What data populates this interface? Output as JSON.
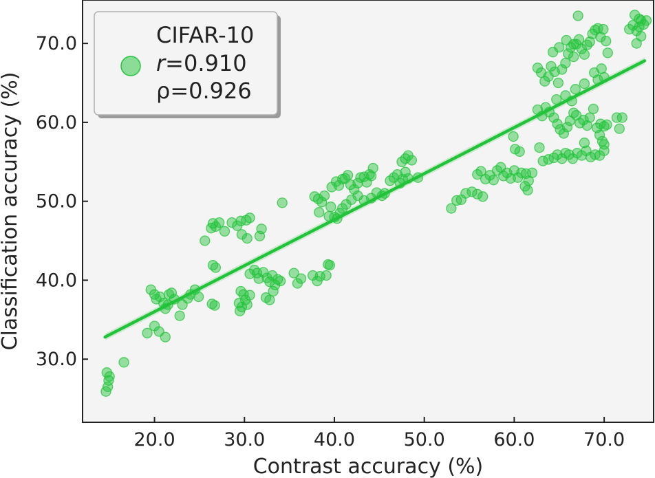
{
  "colors": {
    "series": "#22c33a",
    "plot_background": "#f4f4f4",
    "axis": "#222222",
    "legend_background": "#f4f4f4",
    "legend_border": "#b0b0b0"
  },
  "chart_data": {
    "type": "scatter",
    "xlabel": "Contrast accuracy (%)",
    "ylabel": "Classification accuracy (%)",
    "xlim": [
      12.0,
      75.5
    ],
    "ylim": [
      22.0,
      75.5
    ],
    "xticks": [
      20.0,
      30.0,
      40.0,
      50.0,
      60.0,
      70.0
    ],
    "yticks": [
      30.0,
      40.0,
      50.0,
      60.0,
      70.0
    ],
    "xtick_labels": [
      "20.0",
      "30.0",
      "40.0",
      "50.0",
      "60.0",
      "70.0"
    ],
    "ytick_labels": [
      "30.0",
      "40.0",
      "50.0",
      "60.0",
      "70.0"
    ],
    "grid": false,
    "legend": {
      "placement": "top-left",
      "title": "CIFAR-10",
      "r_symbol": "r",
      "r_value": "=0.910",
      "rho_text": "ρ=0.926"
    },
    "regression": {
      "x": [
        14.5,
        74.5
      ],
      "y": [
        32.8,
        67.8
      ]
    },
    "series": [
      {
        "points": [
          [
            14.6,
            25.9
          ],
          [
            14.8,
            26.5
          ],
          [
            14.9,
            27.3
          ],
          [
            14.7,
            28.3
          ],
          [
            15.0,
            27.8
          ],
          [
            16.6,
            29.6
          ],
          [
            19.2,
            33.3
          ],
          [
            20.0,
            34.2
          ],
          [
            20.5,
            33.5
          ],
          [
            21.2,
            32.8
          ],
          [
            19.6,
            38.8
          ],
          [
            20.0,
            38.2
          ],
          [
            20.2,
            37.6
          ],
          [
            20.6,
            37.9
          ],
          [
            21.0,
            37.1
          ],
          [
            21.2,
            36.4
          ],
          [
            21.5,
            36.9
          ],
          [
            21.6,
            38.2
          ],
          [
            21.9,
            38.4
          ],
          [
            22.2,
            37.6
          ],
          [
            22.8,
            35.5
          ],
          [
            23.1,
            36.9
          ],
          [
            23.7,
            37.7
          ],
          [
            24.0,
            38.2
          ],
          [
            24.5,
            38.8
          ],
          [
            24.9,
            37.9
          ],
          [
            25.6,
            45.0
          ],
          [
            26.3,
            46.6
          ],
          [
            26.5,
            47.2
          ],
          [
            26.8,
            46.8
          ],
          [
            27.2,
            47.3
          ],
          [
            27.8,
            46.2
          ],
          [
            28.6,
            47.3
          ],
          [
            29.2,
            46.9
          ],
          [
            29.6,
            47.5
          ],
          [
            30.2,
            47.6
          ],
          [
            30.6,
            47.9
          ],
          [
            29.7,
            45.8
          ],
          [
            30.3,
            45.3
          ],
          [
            31.7,
            45.6
          ],
          [
            31.9,
            46.5
          ],
          [
            26.5,
            41.9
          ],
          [
            26.8,
            41.6
          ],
          [
            26.4,
            37.0
          ],
          [
            26.7,
            36.8
          ],
          [
            29.6,
            38.6
          ],
          [
            29.9,
            38.2
          ],
          [
            30.1,
            37.5
          ],
          [
            29.4,
            37.1
          ],
          [
            29.7,
            36.6
          ],
          [
            29.5,
            36.1
          ],
          [
            30.3,
            36.9
          ],
          [
            30.6,
            38.1
          ],
          [
            30.6,
            40.8
          ],
          [
            31.1,
            41.3
          ],
          [
            31.4,
            40.9
          ],
          [
            31.6,
            40.2
          ],
          [
            32.1,
            41.0
          ],
          [
            32.5,
            40.3
          ],
          [
            32.8,
            39.8
          ],
          [
            33.1,
            40.6
          ],
          [
            33.4,
            39.4
          ],
          [
            33.7,
            40.1
          ],
          [
            34.0,
            39.9
          ],
          [
            32.4,
            37.8
          ],
          [
            32.8,
            37.5
          ],
          [
            33.2,
            38.6
          ],
          [
            34.2,
            49.8
          ],
          [
            35.5,
            40.9
          ],
          [
            35.9,
            39.6
          ],
          [
            36.3,
            40.2
          ],
          [
            37.6,
            40.6
          ],
          [
            38.1,
            39.9
          ],
          [
            38.4,
            40.5
          ],
          [
            39.1,
            40.6
          ],
          [
            39.3,
            42.0
          ],
          [
            39.5,
            41.9
          ],
          [
            37.8,
            50.6
          ],
          [
            38.2,
            50.3
          ],
          [
            38.6,
            49.9
          ],
          [
            38.9,
            50.7
          ],
          [
            38.3,
            48.6
          ],
          [
            39.4,
            48.1
          ],
          [
            39.6,
            49.3
          ],
          [
            40.0,
            48.0
          ],
          [
            40.3,
            47.8
          ],
          [
            40.6,
            48.5
          ],
          [
            40.9,
            49.1
          ],
          [
            39.7,
            51.8
          ],
          [
            40.2,
            52.5
          ],
          [
            40.5,
            52.0
          ],
          [
            40.9,
            52.8
          ],
          [
            41.2,
            52.9
          ],
          [
            41.5,
            53.3
          ],
          [
            41.8,
            52.1
          ],
          [
            42.2,
            51.5
          ],
          [
            42.6,
            52.3
          ],
          [
            42.9,
            53.0
          ],
          [
            43.3,
            53.1
          ],
          [
            43.6,
            52.4
          ],
          [
            43.9,
            53.4
          ],
          [
            44.1,
            53.2
          ],
          [
            44.3,
            54.2
          ],
          [
            41.3,
            49.6
          ],
          [
            41.9,
            50.2
          ],
          [
            42.6,
            50.7
          ],
          [
            43.3,
            50.1
          ],
          [
            44.1,
            50.4
          ],
          [
            44.7,
            51.1
          ],
          [
            45.3,
            50.7
          ],
          [
            45.6,
            51.0
          ],
          [
            46.2,
            52.6
          ],
          [
            46.6,
            53.0
          ],
          [
            47.0,
            53.4
          ],
          [
            47.3,
            52.3
          ],
          [
            47.6,
            52.8
          ],
          [
            47.9,
            53.7
          ],
          [
            48.2,
            52.9
          ],
          [
            47.5,
            55.0
          ],
          [
            47.9,
            55.4
          ],
          [
            48.2,
            55.8
          ],
          [
            48.6,
            55.2
          ],
          [
            49.3,
            53.0
          ],
          [
            53.0,
            49.1
          ],
          [
            53.6,
            50.1
          ],
          [
            54.1,
            50.2
          ],
          [
            54.6,
            51.0
          ],
          [
            55.3,
            51.2
          ],
          [
            55.9,
            50.9
          ],
          [
            56.5,
            50.6
          ],
          [
            55.9,
            53.4
          ],
          [
            56.3,
            53.8
          ],
          [
            56.8,
            52.8
          ],
          [
            57.3,
            53.3
          ],
          [
            57.7,
            52.7
          ],
          [
            58.1,
            53.9
          ],
          [
            58.5,
            54.3
          ],
          [
            58.8,
            53.2
          ],
          [
            59.2,
            53.6
          ],
          [
            59.6,
            52.9
          ],
          [
            60.0,
            53.9
          ],
          [
            60.4,
            53.0
          ],
          [
            60.8,
            53.6
          ],
          [
            61.3,
            53.5
          ],
          [
            61.6,
            52.6
          ],
          [
            62.0,
            53.6
          ],
          [
            61.2,
            51.9
          ],
          [
            61.5,
            51.4
          ],
          [
            59.9,
            58.2
          ],
          [
            60.1,
            56.6
          ],
          [
            60.6,
            56.3
          ],
          [
            62.8,
            56.8
          ],
          [
            63.2,
            55.1
          ],
          [
            63.8,
            55.3
          ],
          [
            64.4,
            55.5
          ],
          [
            64.8,
            55.9
          ],
          [
            65.3,
            55.4
          ],
          [
            65.7,
            56.1
          ],
          [
            66.1,
            55.9
          ],
          [
            66.5,
            55.4
          ],
          [
            67.0,
            56.1
          ],
          [
            67.5,
            55.8
          ],
          [
            68.0,
            56.4
          ],
          [
            68.5,
            55.6
          ],
          [
            69.0,
            55.9
          ],
          [
            69.5,
            55.8
          ],
          [
            70.0,
            56.4
          ],
          [
            62.6,
            61.6
          ],
          [
            63.1,
            60.8
          ],
          [
            63.5,
            61.9
          ],
          [
            63.9,
            61.3
          ],
          [
            64.4,
            60.6
          ],
          [
            64.8,
            59.8
          ],
          [
            65.1,
            59.1
          ],
          [
            65.5,
            58.6
          ],
          [
            65.9,
            59.4
          ],
          [
            66.2,
            60.2
          ],
          [
            66.6,
            61.2
          ],
          [
            66.9,
            60.9
          ],
          [
            67.3,
            59.9
          ],
          [
            67.7,
            60.3
          ],
          [
            68.1,
            59.6
          ],
          [
            68.4,
            60.6
          ],
          [
            68.8,
            61.7
          ],
          [
            69.2,
            59.3
          ],
          [
            69.6,
            59.8
          ],
          [
            70.0,
            59.5
          ],
          [
            70.3,
            59.7
          ],
          [
            71.4,
            60.6
          ],
          [
            71.7,
            59.2
          ],
          [
            72.0,
            60.6
          ],
          [
            69.5,
            58.4
          ],
          [
            69.8,
            57.6
          ],
          [
            70.0,
            57.2
          ],
          [
            67.8,
            57.4
          ],
          [
            62.6,
            66.9
          ],
          [
            63.0,
            66.3
          ],
          [
            63.4,
            65.2
          ],
          [
            63.8,
            65.8
          ],
          [
            64.1,
            67.1
          ],
          [
            64.5,
            66.4
          ],
          [
            64.9,
            65.0
          ],
          [
            65.3,
            66.7
          ],
          [
            65.7,
            67.5
          ],
          [
            66.0,
            68.7
          ],
          [
            66.3,
            69.5
          ],
          [
            66.6,
            68.3
          ],
          [
            66.9,
            69.9
          ],
          [
            67.2,
            70.5
          ],
          [
            67.5,
            69.3
          ],
          [
            67.8,
            68.6
          ],
          [
            68.1,
            69.8
          ],
          [
            68.4,
            70.2
          ],
          [
            68.7,
            71.2
          ],
          [
            69.0,
            71.7
          ],
          [
            69.3,
            71.9
          ],
          [
            69.6,
            70.8
          ],
          [
            69.9,
            71.8
          ],
          [
            70.2,
            70.3
          ],
          [
            70.4,
            68.8
          ],
          [
            64.3,
            68.9
          ],
          [
            65.0,
            69.5
          ],
          [
            65.8,
            70.4
          ],
          [
            66.6,
            69.9
          ],
          [
            67.1,
            73.5
          ],
          [
            68.9,
            66.3
          ],
          [
            69.3,
            65.4
          ],
          [
            69.7,
            66.8
          ],
          [
            70.0,
            65.7
          ],
          [
            64.7,
            62.9
          ],
          [
            65.7,
            63.4
          ],
          [
            66.4,
            62.7
          ],
          [
            66.8,
            64.2
          ],
          [
            67.8,
            64.9
          ],
          [
            72.8,
            71.8
          ],
          [
            73.2,
            72.3
          ],
          [
            73.6,
            71.6
          ],
          [
            73.9,
            72.1
          ],
          [
            74.1,
            72.9
          ],
          [
            74.4,
            72.4
          ],
          [
            74.7,
            72.9
          ],
          [
            73.4,
            73.6
          ],
          [
            73.9,
            73.1
          ],
          [
            73.6,
            70.0
          ],
          [
            74.1,
            70.9
          ]
        ]
      }
    ]
  }
}
